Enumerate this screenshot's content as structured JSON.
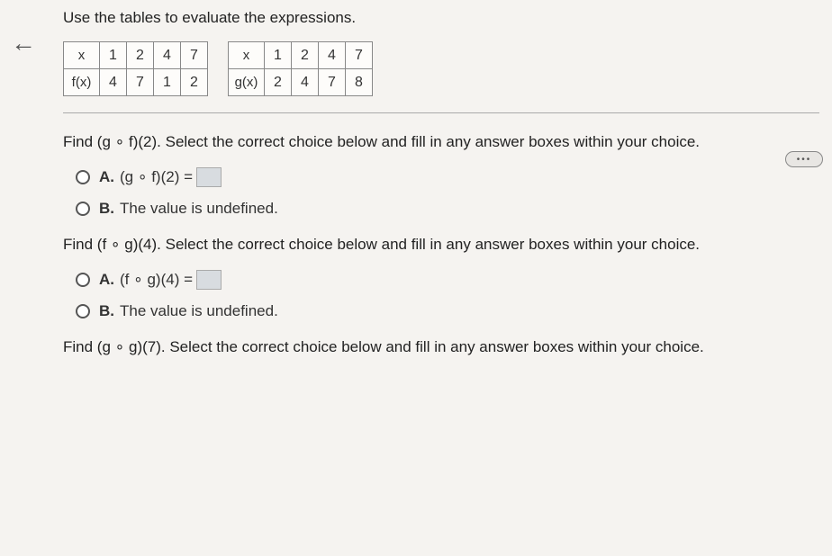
{
  "nav": {
    "back_glyph": "←"
  },
  "intro": "Use the tables to evaluate the expressions.",
  "table_f": {
    "row1": {
      "hdr": "x",
      "c1": "1",
      "c2": "2",
      "c3": "4",
      "c4": "7"
    },
    "row2": {
      "hdr": "f(x)",
      "c1": "4",
      "c2": "7",
      "c3": "1",
      "c4": "2"
    }
  },
  "table_g": {
    "row1": {
      "hdr": "x",
      "c1": "1",
      "c2": "2",
      "c3": "4",
      "c4": "7"
    },
    "row2": {
      "hdr": "g(x)",
      "c1": "2",
      "c2": "4",
      "c3": "7",
      "c4": "8"
    }
  },
  "pill": "•••",
  "q1": {
    "prompt": "Find (g ∘ f)(2). Select the correct choice below and fill in any answer boxes within your choice.",
    "a_label": "A.",
    "a_expr": "(g ∘ f)(2) =",
    "b_label": "B.",
    "b_text": "The value is undefined."
  },
  "q2": {
    "prompt": "Find (f ∘ g)(4). Select the correct choice below and fill in any answer boxes within your choice.",
    "a_label": "A.",
    "a_expr": "(f ∘ g)(4) =",
    "b_label": "B.",
    "b_text": "The value is undefined."
  },
  "q3": {
    "prompt": "Find (g ∘ g)(7). Select the correct choice below and fill in any answer boxes within your choice."
  }
}
